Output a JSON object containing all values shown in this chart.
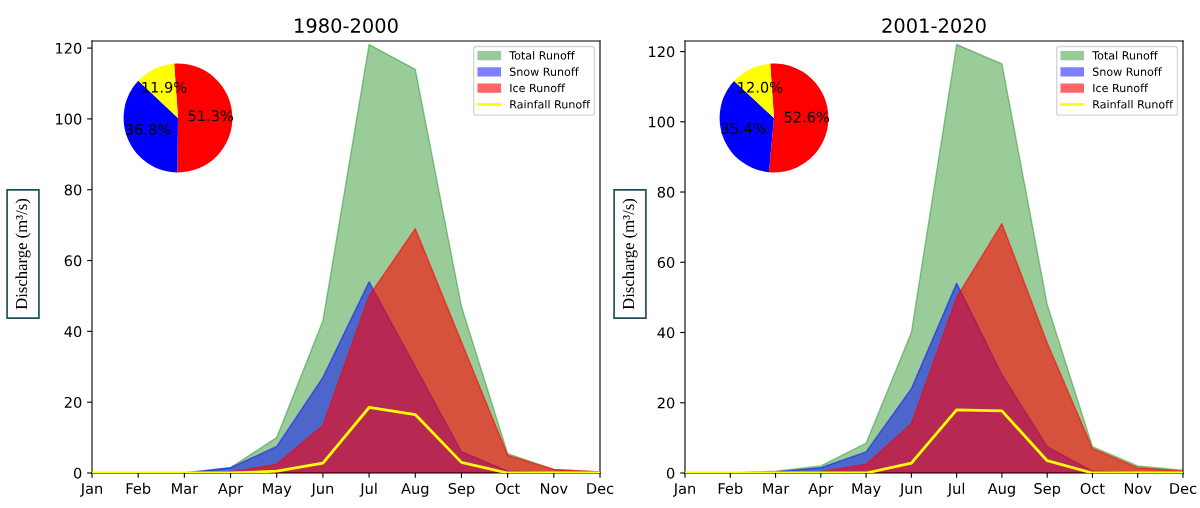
{
  "chart_data": [
    {
      "type": "area",
      "title": "1980-2000",
      "ylabel": "Discharge (m³/s)",
      "categories": [
        "Jan",
        "Feb",
        "Mar",
        "Apr",
        "May",
        "Jun",
        "Jul",
        "Aug",
        "Sep",
        "Oct",
        "Nov",
        "Dec"
      ],
      "ylim": [
        0,
        122
      ],
      "yticks": [
        0,
        20,
        40,
        60,
        80,
        100,
        120
      ],
      "legend": "top right",
      "grid": false,
      "series": [
        {
          "name": "Total Runoff",
          "color": "#008000",
          "values": [
            0,
            0,
            0,
            1.5,
            10,
            43,
            121,
            114,
            47,
            5.5,
            1,
            0.3
          ]
        },
        {
          "name": "Snow Runoff",
          "color": "#0000ff",
          "values": [
            0,
            0,
            0,
            1.5,
            7.5,
            27,
            54,
            30,
            6,
            0.5,
            0,
            0
          ]
        },
        {
          "name": "Ice Runoff",
          "color": "#ff0000",
          "values": [
            0,
            0,
            0,
            0.3,
            2.5,
            13.5,
            50,
            69,
            37,
            5,
            1,
            0.3
          ]
        },
        {
          "name": "Rainfall Runoff",
          "type": "line",
          "color": "#ffff00",
          "values": [
            0,
            0,
            0,
            0,
            0.5,
            2.8,
            18.5,
            16.5,
            3,
            0,
            0,
            0
          ]
        }
      ]
    },
    {
      "type": "pie",
      "categories": [
        null,
        null,
        null
      ],
      "values": [
        51.3,
        36.8,
        11.9
      ],
      "colors": [
        "#ff0000",
        "#0000ff",
        "#ffff00"
      ],
      "value_labels": [
        "51.3%",
        "36.8%",
        "11.9%"
      ]
    },
    {
      "type": "area",
      "title": "2001-2020",
      "ylabel": "Discharge (m³/s)",
      "categories": [
        "Jan",
        "Feb",
        "Mar",
        "Apr",
        "May",
        "Jun",
        "Jul",
        "Aug",
        "Sep",
        "Oct",
        "Nov",
        "Dec"
      ],
      "ylim": [
        0,
        123
      ],
      "yticks": [
        0,
        20,
        40,
        60,
        80,
        100,
        120
      ],
      "legend": "top right",
      "grid": false,
      "series": [
        {
          "name": "Total Runoff",
          "color": "#008000",
          "values": [
            0,
            0,
            0.5,
            2,
            8.5,
            40,
            122,
            116.5,
            48,
            7.5,
            2,
            0.8
          ]
        },
        {
          "name": "Snow Runoff",
          "color": "#0000ff",
          "values": [
            0,
            0,
            0.3,
            1.5,
            6,
            24,
            54,
            28,
            7.5,
            0.5,
            0,
            0
          ]
        },
        {
          "name": "Ice Runoff",
          "color": "#ff0000",
          "values": [
            0,
            0,
            0,
            0.3,
            2.5,
            14,
            50,
            71,
            37,
            7,
            1.5,
            0.5
          ]
        },
        {
          "name": "Rainfall Runoff",
          "type": "line",
          "color": "#ffff00",
          "values": [
            0,
            0,
            0,
            0,
            0,
            2.8,
            18,
            17.7,
            3.5,
            0,
            0,
            0
          ]
        }
      ]
    },
    {
      "type": "pie",
      "categories": [
        null,
        null,
        null
      ],
      "values": [
        52.6,
        35.4,
        12.0
      ],
      "colors": [
        "#ff0000",
        "#0000ff",
        "#ffff00"
      ],
      "value_labels": [
        "52.6%",
        "35.4%",
        "12.0%"
      ]
    }
  ]
}
